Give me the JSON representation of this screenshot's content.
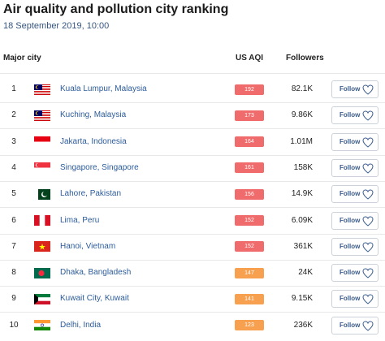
{
  "header": {
    "title": "Air quality and pollution city ranking",
    "subtitle": "18 September 2019, 10:00"
  },
  "table": {
    "columns": [
      "Major city",
      "US AQI",
      "Followers"
    ],
    "follow_label": "Follow",
    "rows": [
      {
        "rank": 1,
        "city": "Kuala Lumpur, Malaysia",
        "aqi": 192,
        "color": "#f06b6b",
        "followers": "82.1K"
      },
      {
        "rank": 2,
        "city": "Kuching, Malaysia",
        "aqi": 173,
        "color": "#f06b6b",
        "followers": "9.86K"
      },
      {
        "rank": 3,
        "city": "Jakarta, Indonesia",
        "aqi": 164,
        "color": "#f06b6b",
        "followers": "1.01M"
      },
      {
        "rank": 4,
        "city": "Singapore, Singapore",
        "aqi": 161,
        "color": "#f06b6b",
        "followers": "158K"
      },
      {
        "rank": 5,
        "city": "Lahore, Pakistan",
        "aqi": 156,
        "color": "#f06b6b",
        "followers": "14.9K"
      },
      {
        "rank": 6,
        "city": "Lima, Peru",
        "aqi": 152,
        "color": "#f06b6b",
        "followers": "6.09K"
      },
      {
        "rank": 7,
        "city": "Hanoi, Vietnam",
        "aqi": 152,
        "color": "#f06b6b",
        "followers": "361K"
      },
      {
        "rank": 8,
        "city": "Dhaka, Bangladesh",
        "aqi": 147,
        "color": "#f7a04f",
        "followers": "24K"
      },
      {
        "rank": 9,
        "city": "Kuwait City, Kuwait",
        "aqi": 141,
        "color": "#f7a04f",
        "followers": "9.15K"
      },
      {
        "rank": 10,
        "city": "Delhi, India",
        "aqi": 123,
        "color": "#f7a04f",
        "followers": "236K"
      }
    ]
  }
}
